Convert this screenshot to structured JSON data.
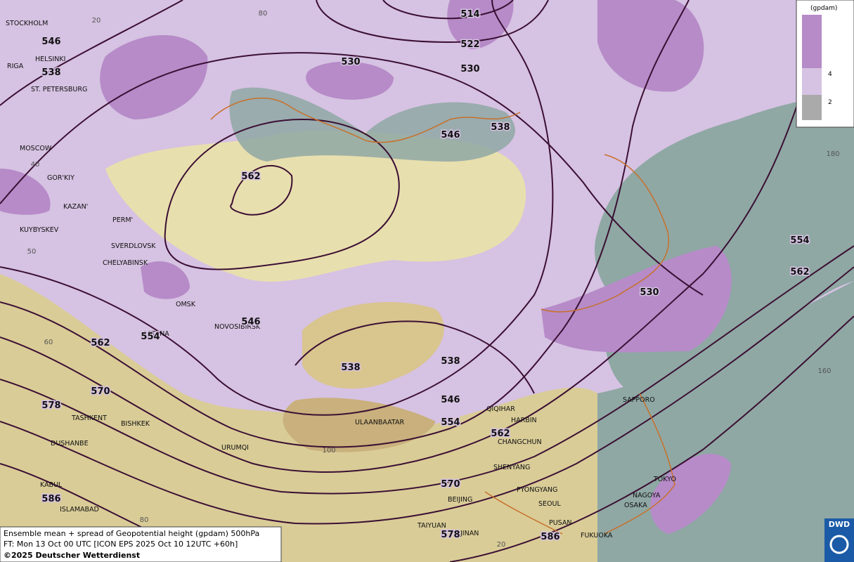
{
  "cities": [
    "STOCKHOLM",
    "HELSINKI",
    "RIGA",
    "ST. PETERSBURG",
    "MOSCOW",
    "GOR'KIY",
    "KAZAN'",
    "PERM'",
    "KUYBYSKEV",
    "SVERDLOVSK",
    "CHELYABINSK",
    "OMSK",
    "ASTANA",
    "NOVOSIBIRSK",
    "TASHKENT",
    "BISHKEK",
    "DUSHANBE",
    "URUMQI",
    "ULAANBAATAR",
    "QIQIHAR",
    "HARBIN",
    "CHANGCHUN",
    "SHENYANG",
    "PYONGYANG",
    "SEOUL",
    "BEIJING",
    "TAIYUAN",
    "JINAN",
    "PUSAN",
    "FUKUOKA",
    "NAGOYA",
    "OSAKA",
    "TOKYO",
    "SAPPORO",
    "KABUL",
    "ISLAMABAD"
  ],
  "contour_labels": [
    546,
    538,
    514,
    522,
    530,
    530,
    546,
    538,
    562,
    546,
    554,
    562,
    570,
    578,
    586,
    538,
    538,
    546,
    554,
    562,
    570,
    578,
    586,
    530,
    554,
    562
  ],
  "graticule_labels": [
    20,
    80,
    40,
    50,
    60,
    100,
    80,
    20,
    180,
    160
  ],
  "legend": {
    "unit": "(gpdam)",
    "ticks": [
      4,
      2
    ]
  },
  "caption": [
    "Ensemble mean + spread of Geopotential height (gpdam) 500hPa",
    "FT: Mon 13 Oct 00 UTC [ICON EPS 2025 Oct 10 12UTC +60h]",
    "©2025 Deutscher Wetterdienst"
  ],
  "logo": "DWD"
}
